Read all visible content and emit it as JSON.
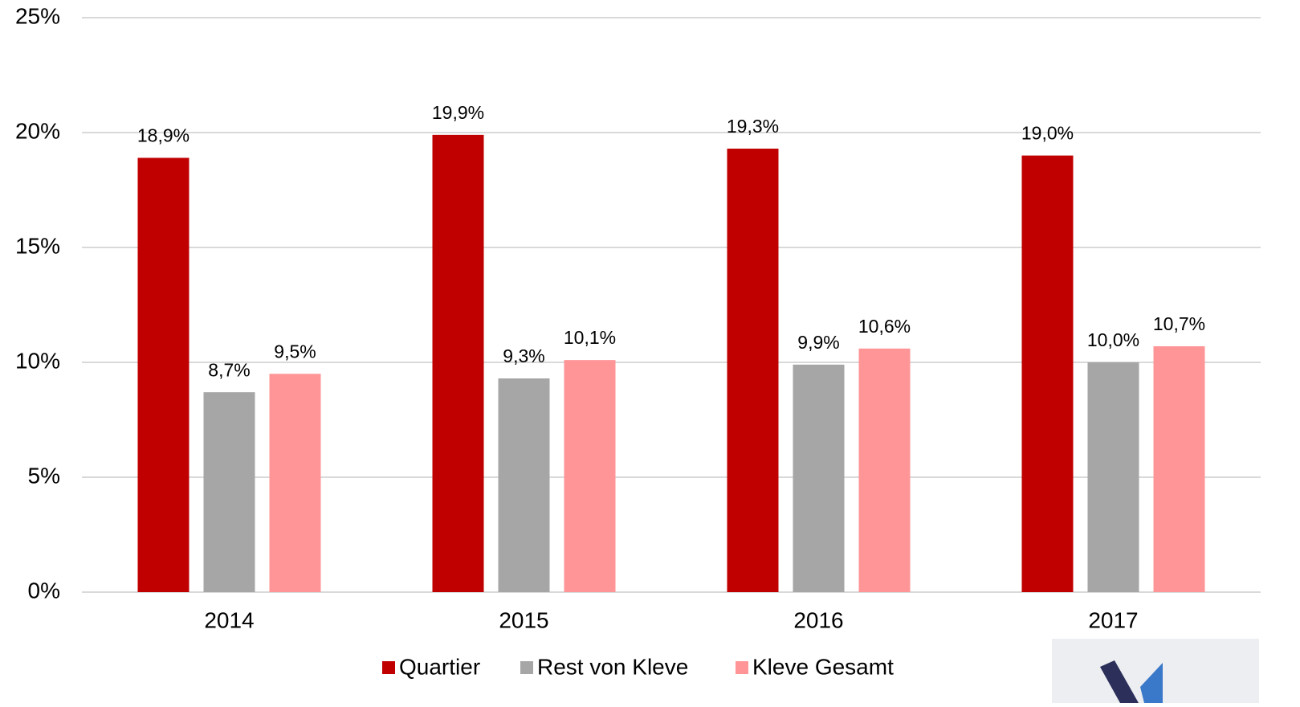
{
  "chart_data": {
    "type": "bar",
    "categories": [
      "2014",
      "2015",
      "2016",
      "2017"
    ],
    "series": [
      {
        "name": "Quartier",
        "color": "#c00000",
        "values": [
          18.9,
          19.9,
          19.3,
          19.0
        ],
        "value_labels": [
          "18,9%",
          "19,9%",
          "19,3%",
          "19,0%"
        ]
      },
      {
        "name": "Rest von Kleve",
        "color": "#a6a6a6",
        "values": [
          8.7,
          9.3,
          9.9,
          10.0
        ],
        "value_labels": [
          "8,7%",
          "9,3%",
          "9,9%",
          "10,0%"
        ]
      },
      {
        "name": "Kleve Gesamt",
        "color": "#ff9597",
        "values": [
          9.5,
          10.1,
          10.6,
          10.7
        ],
        "value_labels": [
          "9,5%",
          "10,1%",
          "10,6%",
          "10,7%"
        ]
      }
    ],
    "ylim": [
      0,
      25
    ],
    "yticks": [
      {
        "value": 0,
        "label": "0%"
      },
      {
        "value": 5,
        "label": "5%"
      },
      {
        "value": 10,
        "label": "10%"
      },
      {
        "value": 15,
        "label": "15%"
      },
      {
        "value": 20,
        "label": "20%"
      },
      {
        "value": 25,
        "label": "25%"
      }
    ],
    "grid": true,
    "legend": "bottom"
  }
}
